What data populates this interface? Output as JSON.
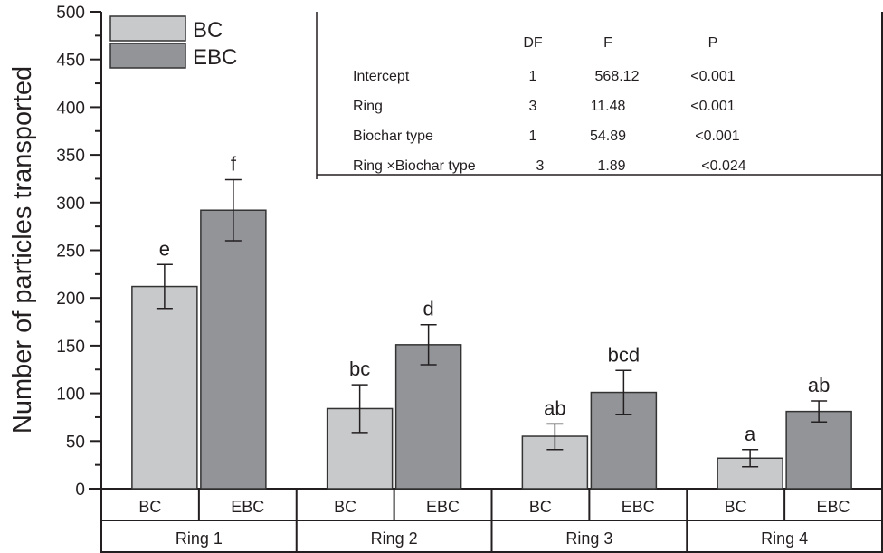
{
  "chart_data": {
    "type": "bar",
    "ylabel": "Number of particles transported",
    "ylim": [
      0,
      500
    ],
    "yticks": [
      0,
      50,
      100,
      150,
      200,
      250,
      300,
      350,
      400,
      450,
      500
    ],
    "groups": [
      "Ring 1",
      "Ring 2",
      "Ring 3",
      "Ring 4"
    ],
    "subcategories": [
      "BC",
      "EBC"
    ],
    "legend": {
      "placement": "top-left",
      "entries": [
        "BC",
        "EBC"
      ]
    },
    "colors": {
      "BC": "#c8c9cb",
      "EBC": "#939497"
    },
    "series": [
      {
        "name": "BC",
        "values": [
          212,
          84,
          55,
          32
        ],
        "err_high": [
          235,
          109,
          68,
          41
        ],
        "err_low": [
          189,
          59,
          41,
          23
        ],
        "letters": [
          "e",
          "bc",
          "ab",
          "a"
        ]
      },
      {
        "name": "EBC",
        "values": [
          292,
          151,
          101,
          81
        ],
        "err_high": [
          324,
          172,
          124,
          92
        ],
        "err_low": [
          260,
          130,
          78,
          70
        ],
        "letters": [
          "f",
          "d",
          "bcd",
          "ab"
        ]
      }
    ],
    "grid": false,
    "inset_table": {
      "headers": [
        "",
        "DF",
        "F",
        "P"
      ],
      "rows": [
        [
          "Intercept",
          "1",
          "568.12",
          "<0.001"
        ],
        [
          "Ring",
          "3",
          "11.48",
          "<0.001"
        ],
        [
          "Biochar type",
          "1",
          "54.89",
          "<0.001"
        ],
        [
          "Ring ×Biochar type",
          "3",
          "1.89",
          "<0.024"
        ]
      ]
    }
  }
}
